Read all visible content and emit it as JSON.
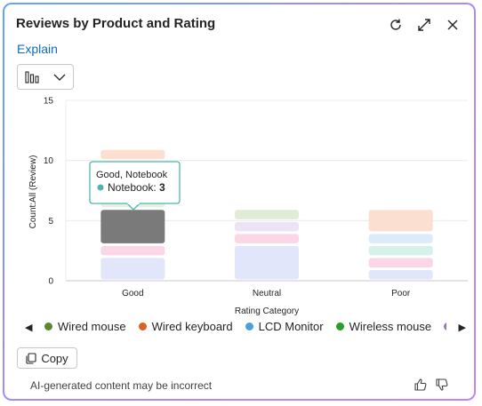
{
  "header": {
    "title": "Reviews by Product and Rating"
  },
  "icons": {
    "refresh": "refresh-icon",
    "expand": "expand-icon",
    "close": "close-icon",
    "chart_type": "bar-chart-icon",
    "chevron": "chevron-down-icon",
    "copy": "copy-icon",
    "like": "thumbs-up-icon",
    "dislike": "thumbs-down-icon"
  },
  "explain_label": "Explain",
  "chart_data": {
    "type": "bar",
    "stacked": true,
    "ylabel": "Count:All (Review)",
    "xlabel": "Rating Category",
    "ylim": [
      0,
      15
    ],
    "yticks": [
      0,
      5,
      10,
      15
    ],
    "categories": [
      "Good",
      "Neutral",
      "Poor"
    ],
    "segments": [
      {
        "category": "Good",
        "count": 2,
        "color": "#e2e6fb"
      },
      {
        "category": "Good",
        "count": 1,
        "color": "#fbd6e6"
      },
      {
        "category": "Good",
        "count": 3,
        "color": "#7a7a7a",
        "highlighted": true
      },
      {
        "category": "Good",
        "count": 4,
        "color": "#e5f1e1"
      },
      {
        "category": "Good",
        "count": 1,
        "color": "#fbe0d2"
      },
      {
        "category": "Neutral",
        "count": 3,
        "color": "#e2e6fb"
      },
      {
        "category": "Neutral",
        "count": 1,
        "color": "#fbd6e6"
      },
      {
        "category": "Neutral",
        "count": 1,
        "color": "#ece3f5"
      },
      {
        "category": "Neutral",
        "count": 1,
        "color": "#e1ecd7"
      },
      {
        "category": "Poor",
        "count": 1,
        "color": "#e2e6fb"
      },
      {
        "category": "Poor",
        "count": 1,
        "color": "#fbd6e6"
      },
      {
        "category": "Poor",
        "count": 1,
        "color": "#d6f0ec"
      },
      {
        "category": "Poor",
        "count": 1,
        "color": "#dcebfa"
      },
      {
        "category": "Poor",
        "count": 2,
        "color": "#fbe0d2"
      }
    ],
    "tooltip": {
      "title": "Good, Notebook",
      "series": "Notebook",
      "value": "3",
      "color": "#4db6ac"
    }
  },
  "legend": [
    {
      "label": "Wired mouse",
      "color": "#5b8731"
    },
    {
      "label": "Wired keyboard",
      "color": "#d4622a"
    },
    {
      "label": "LCD Monitor",
      "color": "#4a9fe0"
    },
    {
      "label": "Wireless mouse",
      "color": "#2a9d2a"
    },
    {
      "label": "W",
      "color": "#9b72c9"
    }
  ],
  "copy_label": "Copy",
  "footer": {
    "disclaimer": "AI-generated content may be incorrect"
  }
}
